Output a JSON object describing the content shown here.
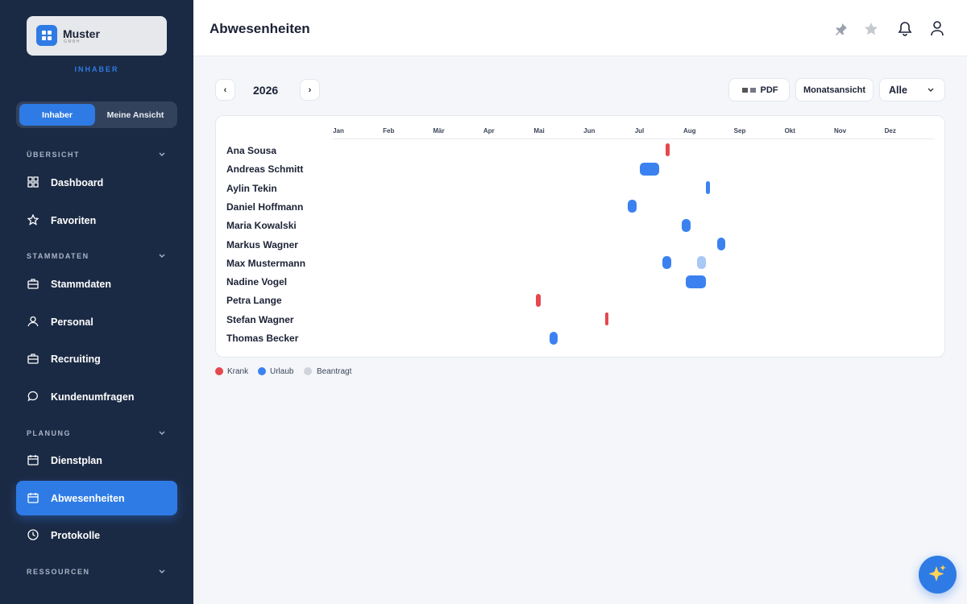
{
  "sidebar": {
    "brand": {
      "name": "Muster",
      "sub": "GMBH"
    },
    "role": "INHABER",
    "toggle": [
      "Inhaber",
      "Meine Ansicht"
    ],
    "sections": [
      {
        "title": "ÜBERSICHT",
        "items": [
          "Dashboard",
          "Favoriten"
        ]
      },
      {
        "title": "STAMMDATEN",
        "items": [
          "Stammdaten",
          "Personal",
          "Recruiting",
          "Kundenumfragen"
        ]
      },
      {
        "title": "PLANUNG",
        "items": [
          "Dienstplan",
          "Abwesenheiten",
          "Protokolle"
        ]
      },
      {
        "title": "RESSOURCEN"
      }
    ]
  },
  "header": {
    "title": "Abwesenheiten"
  },
  "toolbar": {
    "prev": "‹",
    "year": "2026",
    "next": "›",
    "pdf": "PDF",
    "view": "Monatsansicht",
    "filter": "Alle"
  },
  "timeline": {
    "months": [
      "Jan",
      "Feb",
      "Mär",
      "Apr",
      "Mai",
      "Jun",
      "Jul",
      "Aug",
      "Sep",
      "Okt",
      "Nov",
      "Dez"
    ],
    "rows": [
      "Ana Sousa",
      "Andreas Schmitt",
      "Aylin Tekin",
      "Daniel Hoffmann",
      "Maria Kowalski",
      "Markus Wagner",
      "Max Mustermann",
      "Nadine Vogel",
      "Petra Lange",
      "Stefan Wagner",
      "Thomas Becker"
    ]
  },
  "legend": [
    "Krank",
    "Urlaub",
    "Beantragt"
  ]
}
